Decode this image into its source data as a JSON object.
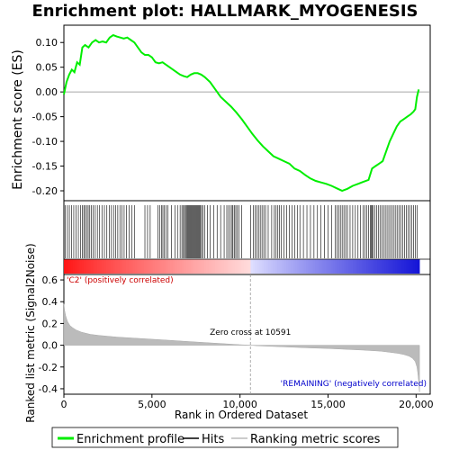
{
  "chart_data": {
    "type": "line",
    "title": "Enrichment plot: HALLMARK_MYOGENESIS",
    "panels": {
      "enrichment": {
        "ylabel": "Enrichment score (ES)",
        "ylim": [
          -0.22,
          0.135
        ],
        "yticks": [
          -0.2,
          -0.15,
          -0.1,
          -0.05,
          0.0,
          0.05,
          0.1
        ],
        "ytick_labels": [
          "-0.20",
          "-0.15",
          "-0.10",
          "-0.05",
          "0.00",
          "0.05",
          "0.10"
        ],
        "series_name": "Enrichment profile",
        "line_color": "#00ee00",
        "x": [
          0,
          150,
          300,
          450,
          600,
          750,
          900,
          1050,
          1200,
          1400,
          1600,
          1800,
          2000,
          2200,
          2400,
          2600,
          2800,
          3000,
          3200,
          3400,
          3600,
          3800,
          4000,
          4200,
          4400,
          4600,
          4800,
          5000,
          5200,
          5400,
          5600,
          5800,
          6000,
          6200,
          6400,
          6600,
          6800,
          7000,
          7200,
          7400,
          7600,
          7800,
          8000,
          8300,
          8600,
          8900,
          9200,
          9500,
          9800,
          10100,
          10400,
          10700,
          11000,
          11300,
          11600,
          11900,
          12200,
          12500,
          12800,
          13100,
          13400,
          13700,
          14000,
          14300,
          14600,
          14900,
          15200,
          15500,
          15800,
          16100,
          16400,
          16700,
          17000,
          17300,
          17500,
          17700,
          17900,
          18100,
          18300,
          18500,
          18700,
          18900,
          19100,
          19300,
          19500,
          19700,
          19850,
          19950,
          20050,
          20150
        ],
        "y": [
          -0.005,
          0.02,
          0.035,
          0.045,
          0.04,
          0.06,
          0.055,
          0.09,
          0.095,
          0.09,
          0.1,
          0.105,
          0.1,
          0.102,
          0.1,
          0.11,
          0.115,
          0.112,
          0.11,
          0.108,
          0.11,
          0.105,
          0.1,
          0.09,
          0.08,
          0.075,
          0.075,
          0.07,
          0.06,
          0.058,
          0.06,
          0.055,
          0.05,
          0.045,
          0.04,
          0.035,
          0.032,
          0.03,
          0.035,
          0.038,
          0.038,
          0.035,
          0.03,
          0.02,
          0.005,
          -0.01,
          -0.02,
          -0.03,
          -0.042,
          -0.055,
          -0.07,
          -0.085,
          -0.098,
          -0.11,
          -0.12,
          -0.13,
          -0.135,
          -0.14,
          -0.145,
          -0.155,
          -0.16,
          -0.168,
          -0.175,
          -0.18,
          -0.183,
          -0.186,
          -0.19,
          -0.195,
          -0.2,
          -0.196,
          -0.19,
          -0.186,
          -0.182,
          -0.178,
          -0.155,
          -0.15,
          -0.145,
          -0.14,
          -0.12,
          -0.1,
          -0.085,
          -0.07,
          -0.06,
          -0.055,
          -0.05,
          -0.045,
          -0.04,
          -0.035,
          -0.01,
          0.005
        ]
      },
      "hits": {
        "series_name": "Hits",
        "positions": [
          80,
          200,
          310,
          430,
          560,
          700,
          820,
          950,
          1050,
          1130,
          1200,
          1290,
          1380,
          1470,
          1560,
          1660,
          1780,
          1900,
          2030,
          2160,
          2300,
          2440,
          2580,
          2700,
          2820,
          2940,
          3060,
          3180,
          3300,
          3420,
          3560,
          3700,
          3850,
          4000,
          4600,
          4750,
          4900,
          5350,
          5450,
          5550,
          5620,
          5700,
          5800,
          5900,
          6100,
          6300,
          6450,
          6600,
          6700,
          6780,
          6850,
          6900,
          6960,
          7010,
          7060,
          7110,
          7160,
          7210,
          7260,
          7310,
          7360,
          7410,
          7460,
          7510,
          7560,
          7610,
          7660,
          7710,
          7760,
          7820,
          7900,
          8000,
          8150,
          8300,
          8500,
          8700,
          8900,
          9100,
          9250,
          9350,
          9450,
          9550,
          9600,
          9680,
          9760,
          9850,
          9950,
          10100,
          10600,
          10750,
          10850,
          10950,
          11050,
          11150,
          11250,
          11350,
          11450,
          11600,
          11800,
          11950,
          12050,
          12150,
          12250,
          12350,
          12500,
          12650,
          12800,
          12950,
          13100,
          13250,
          13400,
          13600,
          13800,
          14000,
          14200,
          14400,
          14600,
          14800,
          15000,
          15200,
          15400,
          15500,
          15600,
          15700,
          15800,
          15900,
          16000,
          16100,
          16250,
          16400,
          16550,
          16700,
          16850,
          17000,
          17100,
          17200,
          17300,
          17400,
          17450,
          17500,
          17550,
          17650,
          17750,
          17850,
          17950,
          18050,
          18150,
          18250,
          18350,
          18450,
          18550,
          18650,
          18750,
          18850,
          18950,
          19050,
          19150,
          19250,
          19350,
          19450,
          19550,
          19650,
          19750,
          19850,
          19950,
          20050
        ]
      },
      "ranking": {
        "ylabel": "Ranked list metric (Signal2Noise)",
        "ylim": [
          -0.45,
          0.65
        ],
        "yticks": [
          -0.4,
          -0.2,
          0.0,
          0.2,
          0.4,
          0.6
        ],
        "ytick_labels": [
          "-0.4",
          "-0.2",
          "0.0",
          "0.2",
          "0.4",
          "0.6"
        ],
        "series_name": "Ranking metric scores",
        "x": [
          0,
          40,
          100,
          200,
          350,
          500,
          700,
          1000,
          1500,
          2000,
          3000,
          4000,
          5000,
          6000,
          7000,
          8000,
          9000,
          10000,
          10591,
          11000,
          12000,
          13000,
          14000,
          15000,
          16000,
          17000,
          18000,
          18500,
          19000,
          19300,
          19600,
          19800,
          19950,
          20050,
          20100,
          20150,
          20190
        ],
        "y": [
          0.38,
          0.32,
          0.27,
          0.22,
          0.18,
          0.16,
          0.14,
          0.12,
          0.1,
          0.09,
          0.075,
          0.065,
          0.055,
          0.045,
          0.035,
          0.025,
          0.015,
          0.005,
          0.0,
          -0.005,
          -0.012,
          -0.018,
          -0.025,
          -0.03,
          -0.037,
          -0.045,
          -0.055,
          -0.065,
          -0.075,
          -0.085,
          -0.1,
          -0.12,
          -0.15,
          -0.2,
          -0.26,
          -0.34,
          -0.43
        ],
        "zero_cross_label": "Zero cross at 10591",
        "zero_cross": 10591,
        "positive_label": "'C2' (positively correlated)",
        "negative_label": "'REMAINING' (negatively correlated)"
      }
    },
    "xlabel": "Rank in Ordered Dataset",
    "xlim": [
      0,
      20800
    ],
    "xticks": [
      0,
      5000,
      10000,
      15000,
      20000
    ],
    "xtick_labels": [
      "0",
      "5,000",
      "10,000",
      "15,000",
      "20,000"
    ],
    "legend": {
      "placement": "bottom",
      "items": [
        {
          "label": "Enrichment profile",
          "color": "#00ee00"
        },
        {
          "label": "Hits",
          "color": "#000000"
        },
        {
          "label": "Ranking metric scores",
          "color": "#bbbbbb"
        }
      ]
    }
  }
}
